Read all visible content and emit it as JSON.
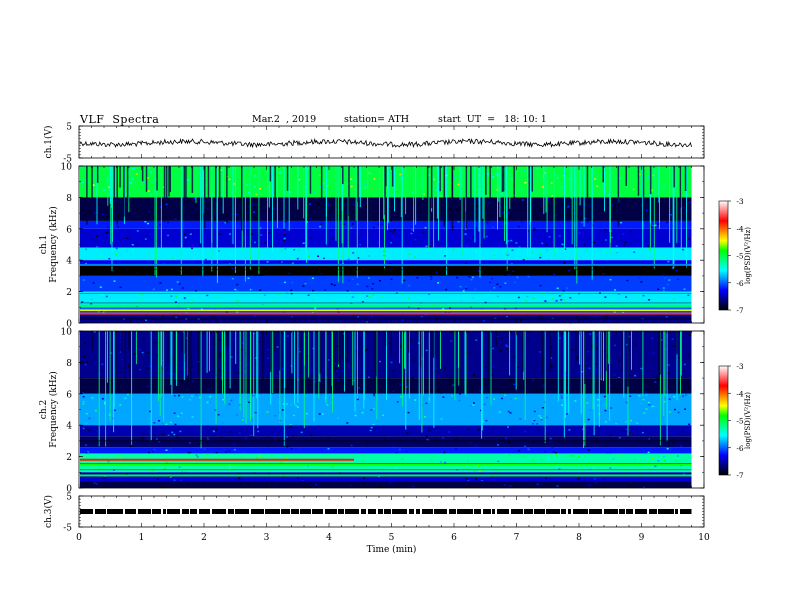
{
  "header": {
    "title": "VLF  Spectra",
    "date": "Mar.2  , 2019",
    "station": "station= ATH",
    "start": "start  UT  =   18: 10: 1"
  },
  "chart_data": [
    {
      "type": "line",
      "id": "ch1-waveform",
      "ylabel": "ch.1(V)",
      "ylim": [
        -5,
        5
      ],
      "yticks": [
        "5",
        "-5"
      ],
      "xlim": [
        0,
        10
      ],
      "x_end": 9.8,
      "level": 0.0,
      "color": "#000000"
    },
    {
      "type": "heatmap",
      "id": "ch1-spectrogram",
      "ylabel": "ch.1\nFrequency  (kHz)",
      "ylim": [
        0,
        10
      ],
      "yticks": [
        "0",
        "2",
        "4",
        "6",
        "8",
        "10"
      ],
      "xlim": [
        0,
        10
      ],
      "x_end": 9.8,
      "bands": [
        {
          "from": 8.0,
          "to": 10.0,
          "value": -5.0
        },
        {
          "from": 6.5,
          "to": 8.0,
          "value": -6.8
        },
        {
          "from": 6.0,
          "to": 6.5,
          "value": -6.2
        },
        {
          "from": 4.8,
          "to": 6.0,
          "value": -6.4
        },
        {
          "from": 4.0,
          "to": 4.8,
          "value": -5.6
        },
        {
          "from": 3.7,
          "to": 4.0,
          "value": -6.3
        },
        {
          "from": 3.0,
          "to": 3.7,
          "value": -7.0
        },
        {
          "from": 2.0,
          "to": 3.0,
          "value": -6.1
        },
        {
          "from": 1.0,
          "to": 2.0,
          "value": -5.6
        },
        {
          "from": 0.6,
          "to": 1.0,
          "value": -6.0
        },
        {
          "from": 0.0,
          "to": 0.6,
          "value": -6.6
        }
      ],
      "lines": [
        {
          "f": 0.6,
          "value": -3.6
        },
        {
          "f": 0.8,
          "value": -4.5
        },
        {
          "f": 1.1,
          "value": -5.0
        },
        {
          "f": 3.7,
          "value": -5.9
        }
      ]
    },
    {
      "type": "heatmap",
      "id": "ch2-spectrogram",
      "ylabel": "ch.2\nFrequency  (kHz)",
      "ylim": [
        0,
        10
      ],
      "yticks": [
        "0",
        "2",
        "4",
        "6",
        "8",
        "10"
      ],
      "xlim": [
        0,
        10
      ],
      "x_end": 9.8,
      "bands": [
        {
          "from": 7.0,
          "to": 10.0,
          "value": -6.6
        },
        {
          "from": 6.0,
          "to": 7.0,
          "value": -6.8
        },
        {
          "from": 4.0,
          "to": 6.0,
          "value": -5.8
        },
        {
          "from": 3.3,
          "to": 4.0,
          "value": -6.5
        },
        {
          "from": 2.6,
          "to": 3.3,
          "value": -6.7
        },
        {
          "from": 2.2,
          "to": 2.6,
          "value": -6.2
        },
        {
          "from": 1.0,
          "to": 2.2,
          "value": -5.3
        },
        {
          "from": 0.4,
          "to": 1.0,
          "value": -6.4
        },
        {
          "from": 0.0,
          "to": 0.4,
          "value": -6.8
        }
      ],
      "lines": [
        {
          "f": 1.8,
          "value": -3.8,
          "x_to": 4.4
        },
        {
          "f": 1.5,
          "value": -4.8
        },
        {
          "f": 0.8,
          "value": -4.9
        }
      ]
    },
    {
      "type": "line",
      "id": "ch3-waveform",
      "ylabel": "ch.3(V)",
      "ylim": [
        -5,
        5
      ],
      "yticks": [
        "5",
        "-5"
      ],
      "xlim": [
        0,
        10
      ],
      "x_end": 9.8,
      "level": 0.0,
      "style": "dashed-thick",
      "color": "#000000"
    }
  ],
  "x_axis": {
    "label": "Time  (min)",
    "ticks": [
      "0",
      "1",
      "2",
      "3",
      "4",
      "5",
      "6",
      "7",
      "8",
      "9",
      "10"
    ]
  },
  "colorbars": [
    {
      "id": "colorbar-ch1",
      "label": "log(PSD)(V²/Hz)",
      "ticks": [
        "-3",
        "-4",
        "-5",
        "-6",
        "-7"
      ],
      "range": [
        -7,
        -3
      ]
    },
    {
      "id": "colorbar-ch2",
      "label": "log(PSD)(V²/Hz)",
      "ticks": [
        "-3",
        "-4",
        "-5",
        "-6",
        "-7"
      ],
      "range": [
        -7,
        -3
      ]
    }
  ],
  "colormap": [
    "#000000",
    "#000080",
    "#0000ff",
    "#0080ff",
    "#00ffff",
    "#00ff80",
    "#00ff00",
    "#ffff00",
    "#ff8000",
    "#ff0000",
    "#ff8080",
    "#ffffff"
  ]
}
